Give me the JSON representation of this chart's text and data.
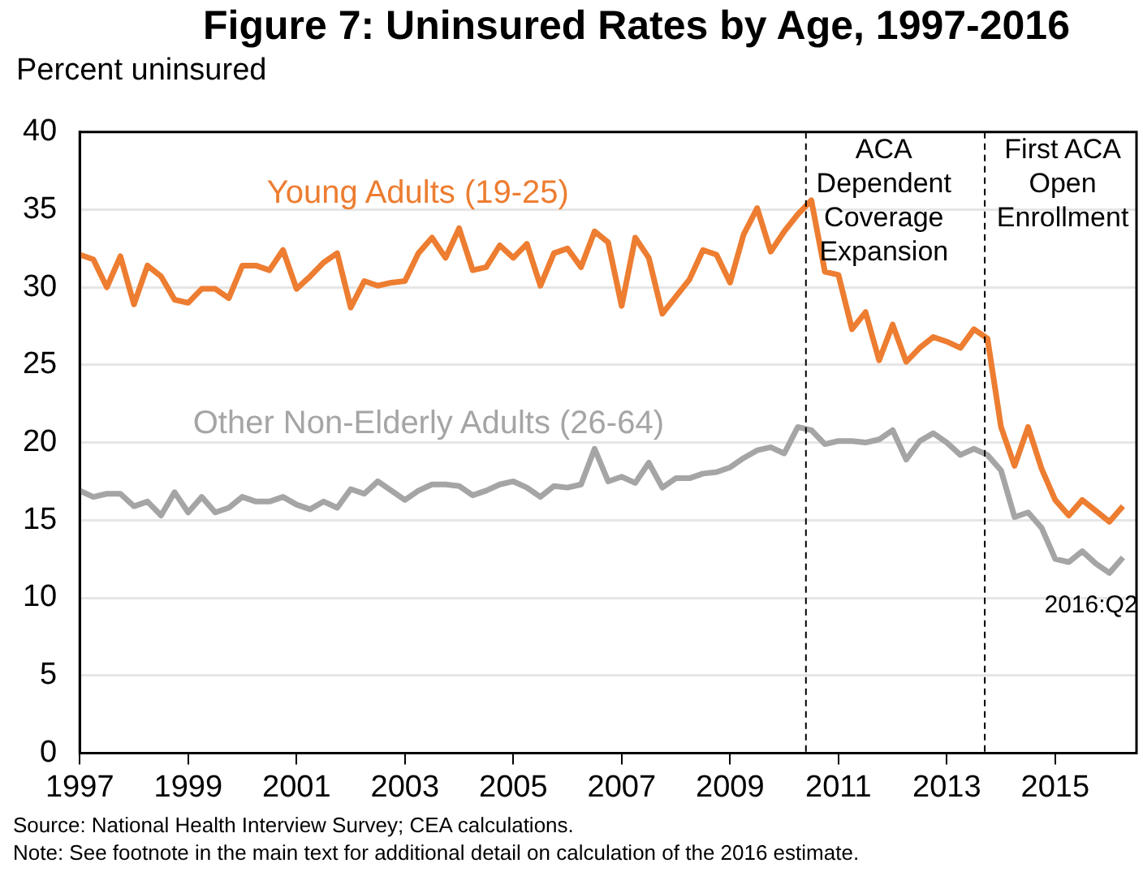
{
  "chart_data": {
    "type": "line",
    "title": "Figure 7: Uninsured Rates by Age, 1997-2016",
    "ylabel": "Percent uninsured",
    "x": [
      1997,
      1997.25,
      1997.5,
      1997.75,
      1998,
      1998.25,
      1998.5,
      1998.75,
      1999,
      1999.25,
      1999.5,
      1999.75,
      2000,
      2000.25,
      2000.5,
      2000.75,
      2001,
      2001.25,
      2001.5,
      2001.75,
      2002,
      2002.25,
      2002.5,
      2002.75,
      2003,
      2003.25,
      2003.5,
      2003.75,
      2004,
      2004.25,
      2004.5,
      2004.75,
      2005,
      2005.25,
      2005.5,
      2005.75,
      2006,
      2006.25,
      2006.5,
      2006.75,
      2007,
      2007.25,
      2007.5,
      2007.75,
      2008,
      2008.25,
      2008.5,
      2008.75,
      2009,
      2009.25,
      2009.5,
      2009.75,
      2010,
      2010.25,
      2010.5,
      2010.75,
      2011,
      2011.25,
      2011.5,
      2011.75,
      2012,
      2012.25,
      2012.5,
      2012.75,
      2013,
      2013.25,
      2013.5,
      2013.75,
      2014,
      2014.25,
      2014.5,
      2014.75,
      2015,
      2015.25,
      2015.5,
      2015.75,
      2016,
      2016.25
    ],
    "series": [
      {
        "name": "Young Adults (19-25)",
        "color": "#ed7d31",
        "values": [
          32.1,
          31.8,
          30.0,
          32.0,
          28.9,
          31.4,
          30.7,
          29.2,
          29.0,
          29.9,
          29.9,
          29.3,
          31.4,
          31.4,
          31.1,
          32.4,
          29.9,
          30.7,
          31.6,
          32.2,
          28.7,
          30.4,
          30.1,
          30.3,
          30.4,
          32.2,
          33.2,
          31.9,
          33.8,
          31.1,
          31.3,
          32.7,
          31.9,
          32.8,
          30.1,
          32.2,
          32.5,
          31.3,
          33.6,
          32.9,
          28.8,
          33.2,
          31.9,
          28.3,
          29.4,
          30.5,
          32.4,
          32.1,
          30.3,
          33.4,
          35.1,
          32.3,
          33.6,
          34.7,
          35.6,
          31.0,
          30.8,
          27.3,
          28.4,
          25.3,
          27.6,
          25.2,
          26.1,
          26.8,
          26.5,
          26.1,
          27.3,
          26.7,
          21.0,
          18.5,
          21.0,
          18.3,
          16.3,
          15.3,
          16.3,
          15.6,
          14.9,
          15.9
        ]
      },
      {
        "name": "Other Non-Elderly Adults (26-64)",
        "color": "#a5a5a5",
        "values": [
          16.9,
          16.5,
          16.7,
          16.7,
          15.9,
          16.2,
          15.3,
          16.8,
          15.5,
          16.5,
          15.5,
          15.8,
          16.5,
          16.2,
          16.2,
          16.5,
          16.0,
          15.7,
          16.2,
          15.8,
          17.0,
          16.7,
          17.5,
          16.9,
          16.3,
          16.9,
          17.3,
          17.3,
          17.2,
          16.6,
          16.9,
          17.3,
          17.5,
          17.1,
          16.5,
          17.2,
          17.1,
          17.3,
          19.6,
          17.5,
          17.8,
          17.4,
          18.7,
          17.1,
          17.7,
          17.7,
          18.0,
          18.1,
          18.4,
          19.0,
          19.5,
          19.7,
          19.3,
          21.0,
          20.8,
          19.9,
          20.1,
          20.1,
          20.0,
          20.2,
          20.8,
          18.9,
          20.1,
          20.6,
          20.0,
          19.2,
          19.6,
          19.2,
          18.2,
          15.2,
          15.5,
          14.5,
          12.5,
          12.3,
          13.0,
          12.2,
          11.6,
          12.6
        ]
      }
    ],
    "xlim": [
      1997,
      2016.5
    ],
    "xticks": [
      1997,
      1999,
      2001,
      2003,
      2005,
      2007,
      2009,
      2011,
      2013,
      2015
    ],
    "ylim": [
      0,
      40
    ],
    "yticks": [
      0,
      5,
      10,
      15,
      20,
      25,
      30,
      35,
      40
    ],
    "grid": "y",
    "legend": false,
    "marker": "none",
    "line_style": "solid",
    "ref_lines": [
      {
        "axis": "x",
        "value": 2010.4,
        "label": "ACA Dependent Coverage Expansion",
        "color": "#000000",
        "line_style": "dashed"
      },
      {
        "axis": "x",
        "value": 2013.7,
        "label": "First ACA Open Enrollment",
        "color": "#000000",
        "line_style": "dashed"
      }
    ],
    "annotations": [
      {
        "text": "2016:Q2",
        "x": 2016.25,
        "y": 12.6
      },
      "Source: National Health Interview Survey; CEA calculations.",
      "Note: See footnote in the main text for additional detail on calculation of the 2016 estimate."
    ]
  }
}
